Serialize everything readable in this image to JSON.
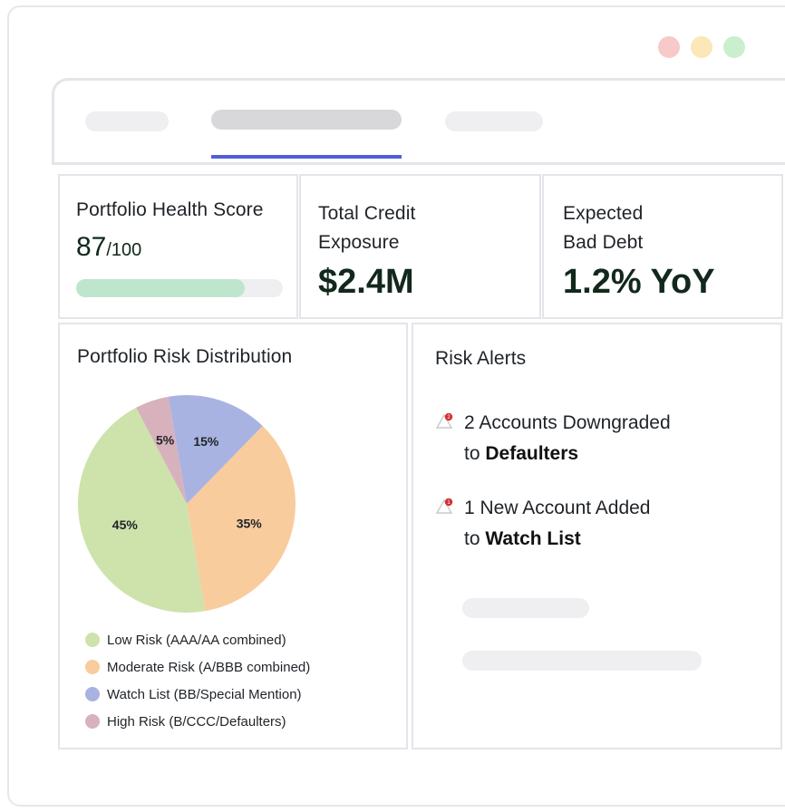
{
  "window": {
    "colors": {
      "close": "#f8c9c9",
      "minimize": "#fbe7b8",
      "maximize": "#c9efcf"
    }
  },
  "tabs": {
    "active_index": 1,
    "accent": "#4f5fd9"
  },
  "health": {
    "title": "Portfolio Health Score",
    "score": "87",
    "max": "/100",
    "progress_fraction": 0.87,
    "bar_color": "#bfe6cc"
  },
  "exposure": {
    "title_line1": "Total Credit",
    "title_line2": "Exposure",
    "value": "$2.4M"
  },
  "bad_debt": {
    "title_line1": "Expected",
    "title_line2": "Bad Debt",
    "value": "1.2% YoY"
  },
  "risk_distribution": {
    "title": "Portfolio Risk Distribution"
  },
  "chart_data": {
    "type": "pie",
    "title": "Portfolio Risk Distribution",
    "categories": [
      "Low Risk (AAA/AA combined)",
      "Moderate Risk (A/BBB combined)",
      "Watch List (BB/Special Mention)",
      "High Risk (B/CCC/Defaulters)"
    ],
    "values": [
      45,
      35,
      15,
      5
    ],
    "labels": [
      "45%",
      "35%",
      "15%",
      "5%"
    ],
    "colors": [
      "#cde3ab",
      "#f8cc9c",
      "#a9b3e1",
      "#d7b1bc"
    ],
    "legend": "bottom"
  },
  "alerts": {
    "title": "Risk Alerts",
    "items": [
      {
        "badge": "2",
        "line1": "2 Accounts Downgraded",
        "line2_prefix": "to ",
        "line2_bold": "Defaulters"
      },
      {
        "badge": "1",
        "line1": "1 New Account Added",
        "line2_prefix": "to ",
        "line2_bold": "Watch List"
      }
    ],
    "icon": "warning-triangle-icon",
    "badge_color": "#d32f2f"
  }
}
